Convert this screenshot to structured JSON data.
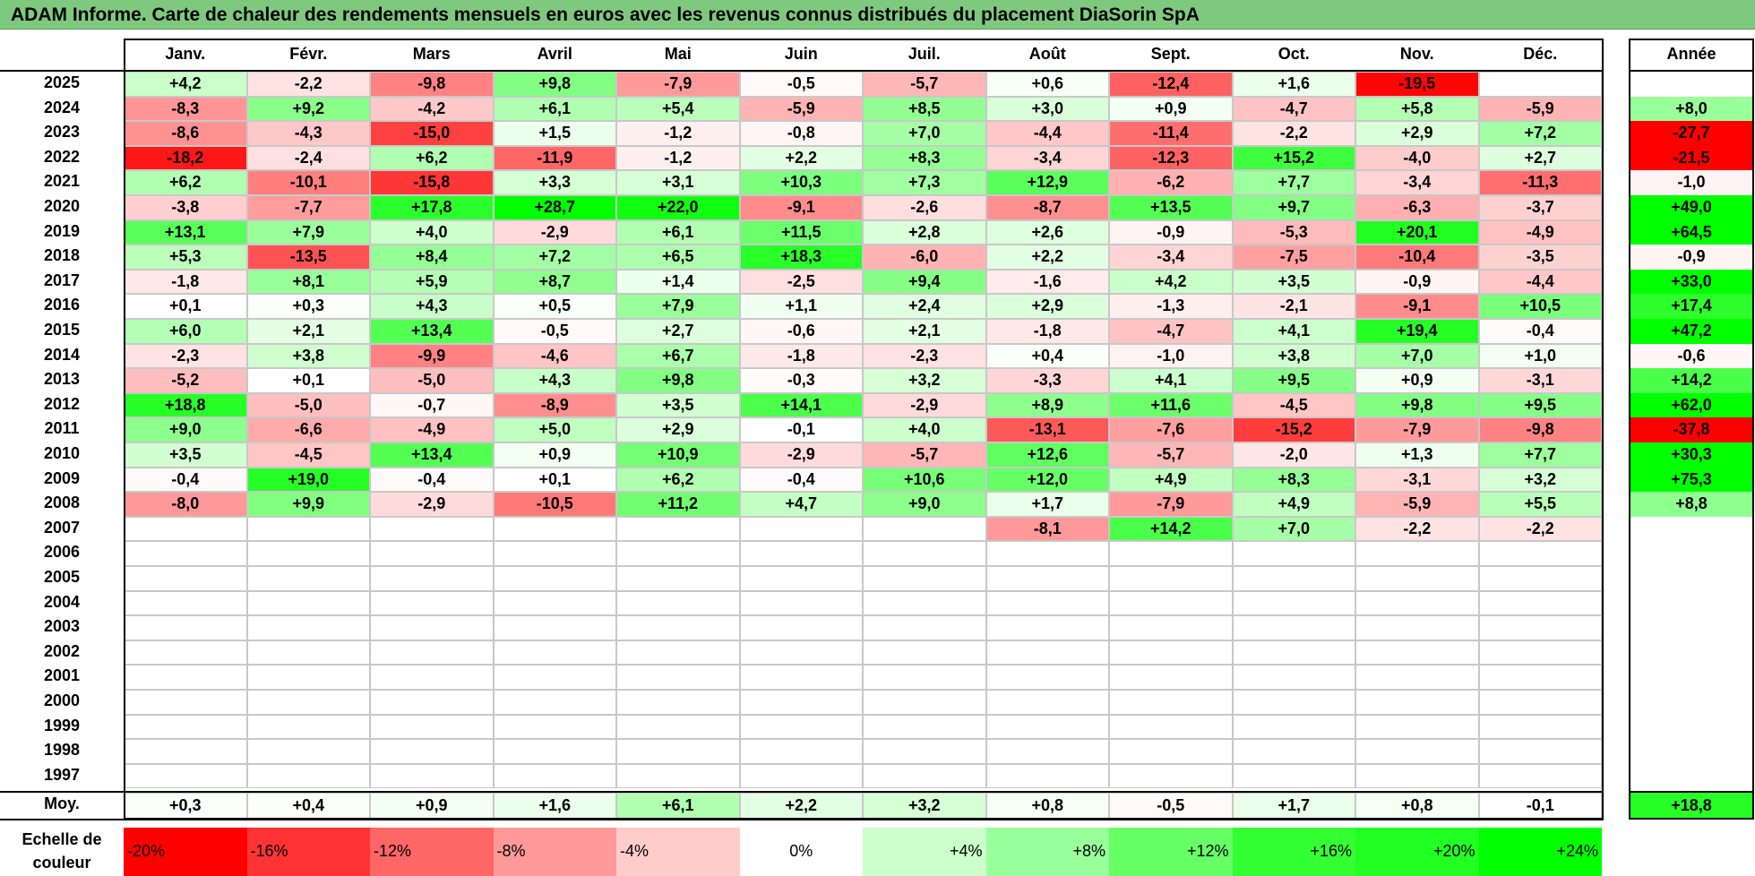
{
  "title": "ADAM Informe. Carte de chaleur des rendements mensuels en euros avec les revenus connus distribués du placement DiaSorin SpA",
  "chart_data": {
    "type": "heatmap",
    "title": "ADAM Informe. Carte de chaleur des rendements mensuels en euros avec les revenus connus distribués du placement DiaSorin SpA",
    "columns": [
      "Janv.",
      "Févr.",
      "Mars",
      "Avril",
      "Mai",
      "Juin",
      "Juil.",
      "Août",
      "Sept.",
      "Oct.",
      "Nov.",
      "Déc."
    ],
    "year_column_label": "Année",
    "average_row_label": "Moy.",
    "rows": [
      {
        "year": "2025",
        "months": [
          "+4,2",
          "-2,2",
          "-9,8",
          "+9,8",
          "-7,9",
          "-0,5",
          "-5,7",
          "+0,6",
          "-12,4",
          "+1,6",
          "-19,5",
          ""
        ],
        "annual": ""
      },
      {
        "year": "2024",
        "months": [
          "-8,3",
          "+9,2",
          "-4,2",
          "+6,1",
          "+5,4",
          "-5,9",
          "+8,5",
          "+3,0",
          "+0,9",
          "-4,7",
          "+5,8",
          "-5,9"
        ],
        "annual": "+8,0"
      },
      {
        "year": "2023",
        "months": [
          "-8,6",
          "-4,3",
          "-15,0",
          "+1,5",
          "-1,2",
          "-0,8",
          "+7,0",
          "-4,4",
          "-11,4",
          "-2,2",
          "+2,9",
          "+7,2"
        ],
        "annual": "-27,7"
      },
      {
        "year": "2022",
        "months": [
          "-18,2",
          "-2,4",
          "+6,2",
          "-11,9",
          "-1,2",
          "+2,2",
          "+8,3",
          "-3,4",
          "-12,3",
          "+15,2",
          "-4,0",
          "+2,7"
        ],
        "annual": "-21,5"
      },
      {
        "year": "2021",
        "months": [
          "+6,2",
          "-10,1",
          "-15,8",
          "+3,3",
          "+3,1",
          "+10,3",
          "+7,3",
          "+12,9",
          "-6,2",
          "+7,7",
          "-3,4",
          "-11,3"
        ],
        "annual": "-1,0"
      },
      {
        "year": "2020",
        "months": [
          "-3,8",
          "-7,7",
          "+17,8",
          "+28,7",
          "+22,0",
          "-9,1",
          "-2,6",
          "-8,7",
          "+13,5",
          "+9,7",
          "-6,3",
          "-3,7"
        ],
        "annual": "+49,0"
      },
      {
        "year": "2019",
        "months": [
          "+13,1",
          "+7,9",
          "+4,0",
          "-2,9",
          "+6,1",
          "+11,5",
          "+2,8",
          "+2,6",
          "-0,9",
          "-5,3",
          "+20,1",
          "-4,9"
        ],
        "annual": "+64,5"
      },
      {
        "year": "2018",
        "months": [
          "+5,3",
          "-13,5",
          "+8,4",
          "+7,2",
          "+6,5",
          "+18,3",
          "-6,0",
          "+2,2",
          "-3,4",
          "-7,5",
          "-10,4",
          "-3,5"
        ],
        "annual": "-0,9"
      },
      {
        "year": "2017",
        "months": [
          "-1,8",
          "+8,1",
          "+5,9",
          "+8,7",
          "+1,4",
          "-2,5",
          "+9,4",
          "-1,6",
          "+4,2",
          "+3,5",
          "-0,9",
          "-4,4"
        ],
        "annual": "+33,0"
      },
      {
        "year": "2016",
        "months": [
          "+0,1",
          "+0,3",
          "+4,3",
          "+0,5",
          "+7,9",
          "+1,1",
          "+2,4",
          "+2,9",
          "-1,3",
          "-2,1",
          "-9,1",
          "+10,5"
        ],
        "annual": "+17,4"
      },
      {
        "year": "2015",
        "months": [
          "+6,0",
          "+2,1",
          "+13,4",
          "-0,5",
          "+2,7",
          "-0,6",
          "+2,1",
          "-1,8",
          "-4,7",
          "+4,1",
          "+19,4",
          "-0,4"
        ],
        "annual": "+47,2"
      },
      {
        "year": "2014",
        "months": [
          "-2,3",
          "+3,8",
          "-9,9",
          "-4,6",
          "+6,7",
          "-1,8",
          "-2,3",
          "+0,4",
          "-1,0",
          "+3,8",
          "+7,0",
          "+1,0"
        ],
        "annual": "-0,6"
      },
      {
        "year": "2013",
        "months": [
          "-5,2",
          "+0,1",
          "-5,0",
          "+4,3",
          "+9,8",
          "-0,3",
          "+3,2",
          "-3,3",
          "+4,1",
          "+9,5",
          "+0,9",
          "-3,1"
        ],
        "annual": "+14,2"
      },
      {
        "year": "2012",
        "months": [
          "+18,8",
          "-5,0",
          "-0,7",
          "-8,9",
          "+3,5",
          "+14,1",
          "-2,9",
          "+8,9",
          "+11,6",
          "-4,5",
          "+9,8",
          "+9,5"
        ],
        "annual": "+62,0"
      },
      {
        "year": "2011",
        "months": [
          "+9,0",
          "-6,6",
          "-4,9",
          "+5,0",
          "+2,9",
          "-0,1",
          "+4,0",
          "-13,1",
          "-7,6",
          "-15,2",
          "-7,9",
          "-9,8"
        ],
        "annual": "-37,8"
      },
      {
        "year": "2010",
        "months": [
          "+3,5",
          "-4,5",
          "+13,4",
          "+0,9",
          "+10,9",
          "-2,9",
          "-5,7",
          "+12,6",
          "-5,7",
          "-2,0",
          "+1,3",
          "+7,7"
        ],
        "annual": "+30,3"
      },
      {
        "year": "2009",
        "months": [
          "-0,4",
          "+19,0",
          "-0,4",
          "+0,1",
          "+6,2",
          "-0,4",
          "+10,6",
          "+12,0",
          "+4,9",
          "+8,3",
          "-3,1",
          "+3,2"
        ],
        "annual": "+75,3"
      },
      {
        "year": "2008",
        "months": [
          "-8,0",
          "+9,9",
          "-2,9",
          "-10,5",
          "+11,2",
          "+4,7",
          "+9,0",
          "+1,7",
          "-7,9",
          "+4,9",
          "-5,9",
          "+5,5"
        ],
        "annual": "+8,8"
      },
      {
        "year": "2007",
        "months": [
          "",
          "",
          "",
          "",
          "",
          "",
          "",
          "-8,1",
          "+14,2",
          "+7,0",
          "-2,2",
          "-2,2"
        ],
        "annual": ""
      },
      {
        "year": "2006",
        "months": [
          "",
          "",
          "",
          "",
          "",
          "",
          "",
          "",
          "",
          "",
          "",
          ""
        ],
        "annual": ""
      },
      {
        "year": "2005",
        "months": [
          "",
          "",
          "",
          "",
          "",
          "",
          "",
          "",
          "",
          "",
          "",
          ""
        ],
        "annual": ""
      },
      {
        "year": "2004",
        "months": [
          "",
          "",
          "",
          "",
          "",
          "",
          "",
          "",
          "",
          "",
          "",
          ""
        ],
        "annual": ""
      },
      {
        "year": "2003",
        "months": [
          "",
          "",
          "",
          "",
          "",
          "",
          "",
          "",
          "",
          "",
          "",
          ""
        ],
        "annual": ""
      },
      {
        "year": "2002",
        "months": [
          "",
          "",
          "",
          "",
          "",
          "",
          "",
          "",
          "",
          "",
          "",
          ""
        ],
        "annual": ""
      },
      {
        "year": "2001",
        "months": [
          "",
          "",
          "",
          "",
          "",
          "",
          "",
          "",
          "",
          "",
          "",
          ""
        ],
        "annual": ""
      },
      {
        "year": "2000",
        "months": [
          "",
          "",
          "",
          "",
          "",
          "",
          "",
          "",
          "",
          "",
          "",
          ""
        ],
        "annual": ""
      },
      {
        "year": "1999",
        "months": [
          "",
          "",
          "",
          "",
          "",
          "",
          "",
          "",
          "",
          "",
          "",
          ""
        ],
        "annual": ""
      },
      {
        "year": "1998",
        "months": [
          "",
          "",
          "",
          "",
          "",
          "",
          "",
          "",
          "",
          "",
          "",
          ""
        ],
        "annual": ""
      },
      {
        "year": "1997",
        "months": [
          "",
          "",
          "",
          "",
          "",
          "",
          "",
          "",
          "",
          "",
          "",
          ""
        ],
        "annual": ""
      }
    ],
    "average": {
      "months": [
        "+0,3",
        "+0,4",
        "+0,9",
        "+1,6",
        "+6,1",
        "+2,2",
        "+3,2",
        "+0,8",
        "-0,5",
        "+1,7",
        "+0,8",
        "-0,1"
      ],
      "annual": "+18,8"
    },
    "color_scale": {
      "label": "Echelle de couleur",
      "stops": [
        {
          "label": "-20%",
          "value": -20,
          "color": "#ff0000"
        },
        {
          "label": "-16%",
          "value": -16,
          "color": "#ff3333"
        },
        {
          "label": "-12%",
          "value": -12,
          "color": "#ff6666"
        },
        {
          "label": "-8%",
          "value": -8,
          "color": "#ff9999"
        },
        {
          "label": "-4%",
          "value": -4,
          "color": "#ffcccc"
        },
        {
          "label": "0%",
          "value": 0,
          "color": "#ffffff"
        },
        {
          "label": "+4%",
          "value": 4,
          "color": "#ccffcc"
        },
        {
          "label": "+8%",
          "value": 8,
          "color": "#99ff99"
        },
        {
          "label": "+12%",
          "value": 12,
          "color": "#66ff66"
        },
        {
          "label": "+16%",
          "value": 16,
          "color": "#33ff33"
        },
        {
          "label": "+20%",
          "value": 20,
          "color": "#22ff22"
        },
        {
          "label": "+24%",
          "value": 24,
          "color": "#00ff00"
        }
      ]
    }
  }
}
